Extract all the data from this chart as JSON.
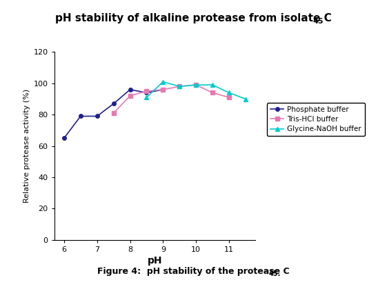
{
  "title_main": "pH stability of alkaline protease from isolate C",
  "title_sub": "45",
  "xlabel": "pH",
  "ylabel": "Relative protease activity (%)",
  "caption_main": "Figure 4:  pH stability of the protease C",
  "caption_sub": "45",
  "caption_dot": ".",
  "xlim": [
    5.7,
    11.8
  ],
  "ylim": [
    0,
    120
  ],
  "xticks": [
    6,
    7,
    8,
    9,
    10,
    11
  ],
  "yticks": [
    0,
    20,
    40,
    60,
    80,
    100,
    120
  ],
  "phosphate_x": [
    6,
    6.5,
    7,
    7.5,
    8,
    8.5,
    9
  ],
  "phosphate_y": [
    65,
    79,
    79,
    87,
    96,
    94,
    96
  ],
  "tris_x": [
    7.5,
    8,
    8.5,
    9,
    9.5,
    10,
    10.5,
    11
  ],
  "tris_y": [
    81,
    92,
    95,
    96,
    98,
    99,
    94,
    91
  ],
  "glycine_x": [
    8.5,
    9,
    9.5,
    10,
    10.5,
    11,
    11.5
  ],
  "glycine_y": [
    91,
    101,
    98,
    99,
    99,
    94,
    90
  ],
  "phosphate_color": "#1F1F8F",
  "tris_color": "#E878B0",
  "glycine_color": "#00CCCC",
  "legend_labels": [
    "Phosphate buffer",
    "Tris-HCl buffer",
    "Glycine-NaOH buffer"
  ],
  "background_color": "#ffffff"
}
